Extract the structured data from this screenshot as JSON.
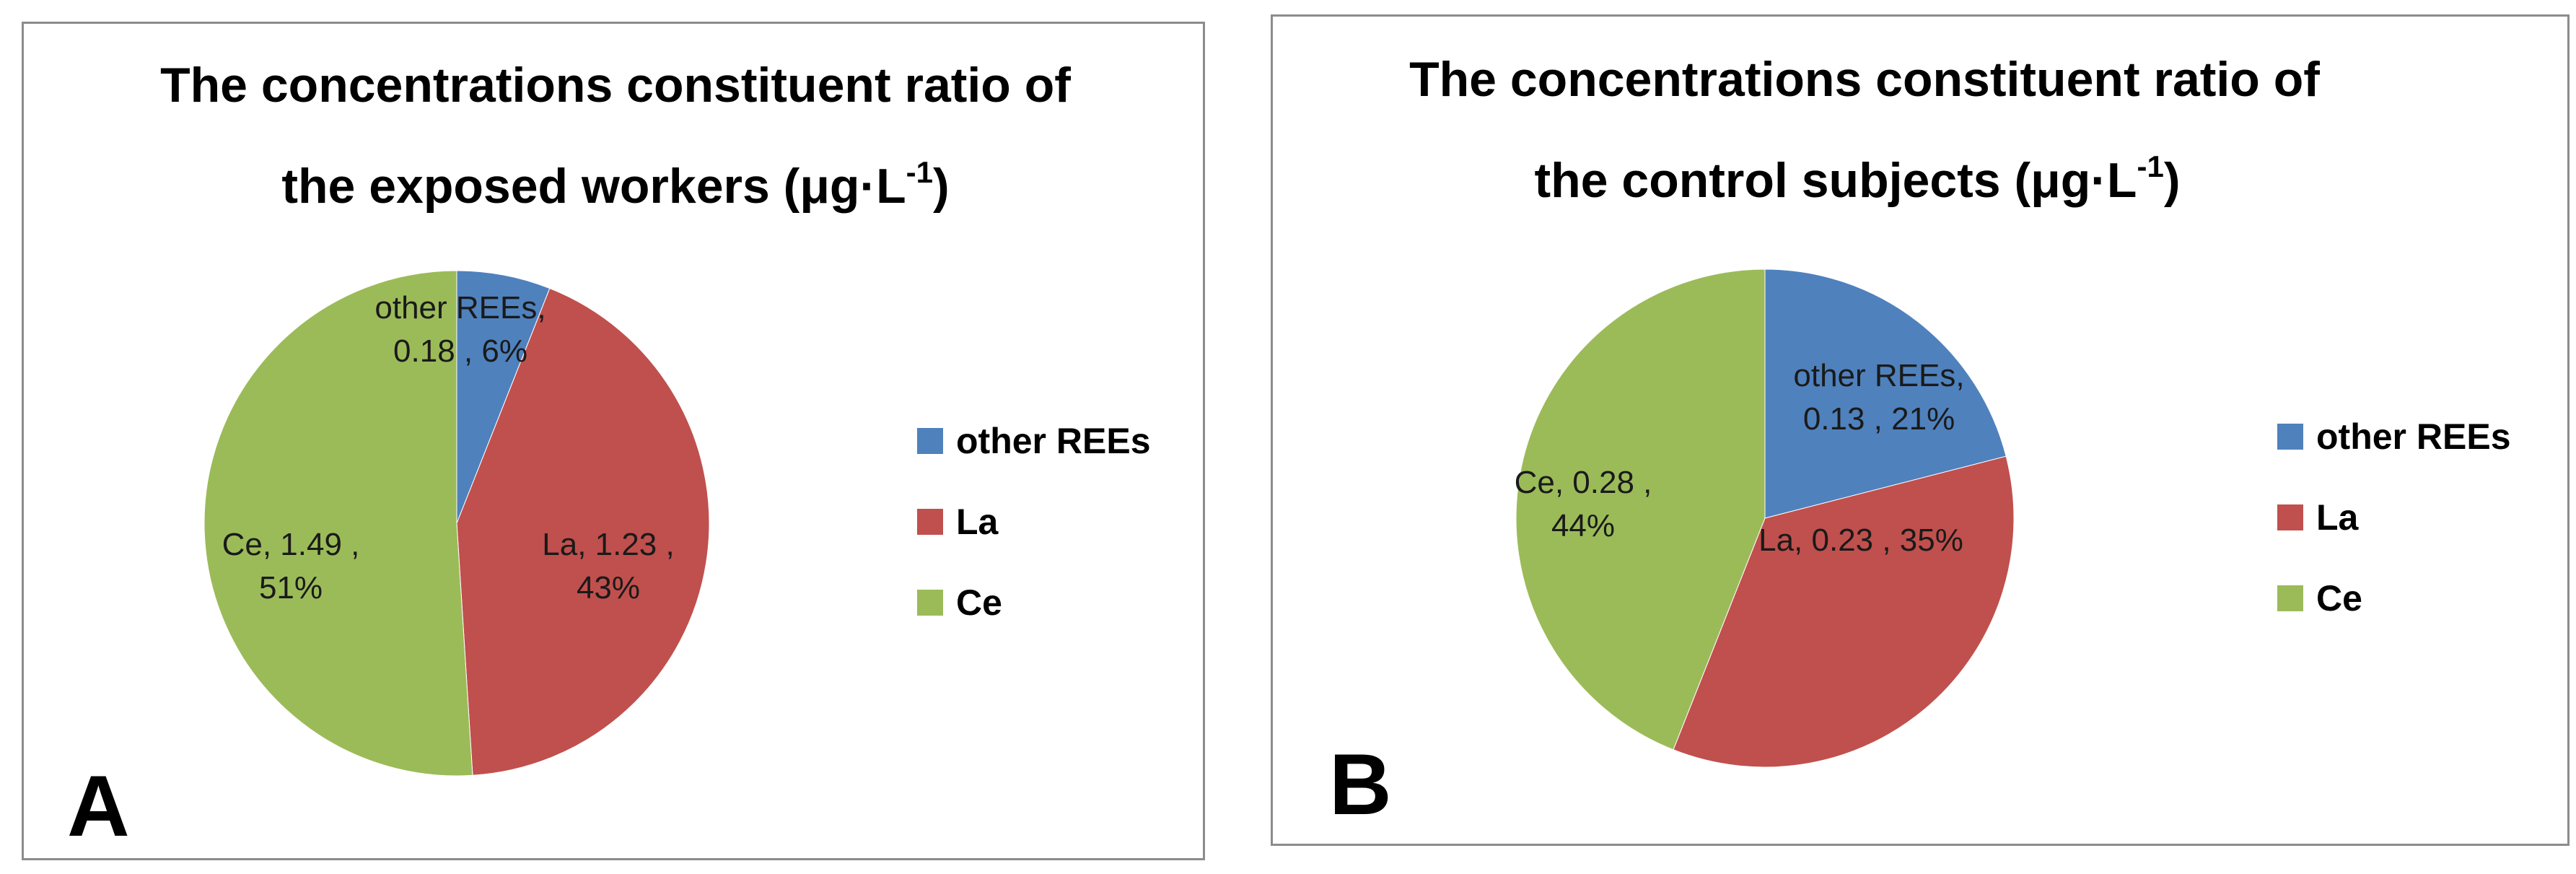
{
  "chart_data": [
    {
      "type": "pie",
      "panel": "A",
      "title_line1": "The concentrations constituent ratio of",
      "title_line2": "the exposed workers (μg·L",
      "title_sup": "-1",
      "title_close": ")",
      "legend_position": "right",
      "slices": [
        {
          "name": "other REEs",
          "value": 0.18,
          "percent": 6,
          "color": "#4f81bd",
          "label_line1": "other REEs,",
          "label_line2": "0.18 , 6%"
        },
        {
          "name": "La",
          "value": 1.23,
          "percent": 43,
          "color": "#c0504d",
          "label_line1": "La, 1.23 ,",
          "label_line2": "43%"
        },
        {
          "name": "Ce",
          "value": 1.49,
          "percent": 51,
          "color": "#9bbb59",
          "label_line1": "Ce, 1.49 ,",
          "label_line2": "51%"
        }
      ]
    },
    {
      "type": "pie",
      "panel": "B",
      "title_line1": "The concentrations constituent ratio of",
      "title_line2": "the control subjects (μg·L",
      "title_sup": "-1",
      "title_close": ")",
      "legend_position": "right",
      "slices": [
        {
          "name": "other REEs",
          "value": 0.13,
          "percent": 21,
          "color": "#4f81bd",
          "label_line1": "other REEs,",
          "label_line2": "0.13 , 21%"
        },
        {
          "name": "La",
          "value": 0.23,
          "percent": 35,
          "color": "#c0504d",
          "label_line1": "La, 0.23 , 35%",
          "label_line2": ""
        },
        {
          "name": "Ce",
          "value": 0.28,
          "percent": 44,
          "color": "#9bbb59",
          "label_line1": "Ce, 0.28 ,",
          "label_line2": "44%"
        }
      ]
    }
  ]
}
